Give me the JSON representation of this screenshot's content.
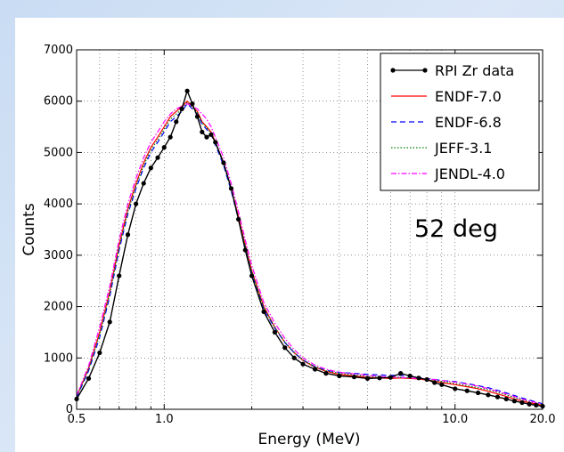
{
  "chart_data": {
    "type": "line",
    "xlabel": "Energy (MeV)",
    "ylabel": "Counts",
    "xscale": "log",
    "xlim": [
      0.5,
      20.0
    ],
    "ylim": [
      0,
      7000
    ],
    "xticks": [
      0.5,
      1.0,
      10.0,
      20.0
    ],
    "xtick_labels": [
      "0.5",
      "1.0",
      "10.0",
      "20.0"
    ],
    "yticks": [
      0,
      1000,
      2000,
      3000,
      4000,
      5000,
      6000,
      7000
    ],
    "ytick_labels": [
      "0",
      "1000",
      "2000",
      "3000",
      "4000",
      "5000",
      "6000",
      "7000"
    ],
    "grid": true,
    "legend_position": "top-right",
    "annotation": "52 deg",
    "series": [
      {
        "name": "RPI Zr data",
        "color": "#000000",
        "style": "solid-markers",
        "x": [
          0.5,
          0.55,
          0.6,
          0.65,
          0.7,
          0.75,
          0.8,
          0.85,
          0.9,
          0.95,
          1.0,
          1.05,
          1.1,
          1.15,
          1.2,
          1.25,
          1.3,
          1.35,
          1.4,
          1.45,
          1.5,
          1.6,
          1.7,
          1.8,
          1.9,
          2.0,
          2.2,
          2.4,
          2.6,
          2.8,
          3.0,
          3.3,
          3.6,
          4.0,
          4.5,
          5.0,
          5.5,
          6.0,
          6.5,
          7.0,
          7.5,
          8.0,
          8.5,
          9.0,
          10.0,
          11.0,
          12.0,
          13.0,
          14.0,
          15.0,
          16.0,
          17.0,
          18.0,
          19.0,
          20.0
        ],
        "y": [
          200,
          600,
          1100,
          1700,
          2600,
          3400,
          4000,
          4400,
          4700,
          4900,
          5100,
          5300,
          5600,
          5850,
          6200,
          5950,
          5700,
          5400,
          5300,
          5350,
          5200,
          4800,
          4300,
          3700,
          3100,
          2600,
          1900,
          1500,
          1200,
          1000,
          880,
          780,
          700,
          650,
          630,
          600,
          610,
          620,
          700,
          650,
          610,
          580,
          520,
          480,
          400,
          360,
          320,
          280,
          240,
          200,
          160,
          130,
          100,
          80,
          60
        ]
      },
      {
        "name": "ENDF-7.0",
        "color": "#ff0000",
        "style": "solid",
        "x": [
          0.5,
          0.55,
          0.6,
          0.65,
          0.7,
          0.75,
          0.8,
          0.85,
          0.9,
          0.95,
          1.0,
          1.05,
          1.1,
          1.15,
          1.2,
          1.25,
          1.3,
          1.35,
          1.4,
          1.45,
          1.5,
          1.6,
          1.7,
          1.8,
          1.9,
          2.0,
          2.2,
          2.4,
          2.6,
          2.8,
          3.0,
          3.3,
          3.6,
          4.0,
          4.5,
          5.0,
          5.5,
          6.0,
          6.5,
          7.0,
          7.5,
          8.0,
          8.5,
          9.0,
          10.0,
          11.0,
          12.0,
          13.0,
          14.0,
          15.0,
          16.0,
          17.0,
          18.0,
          19.0,
          20.0
        ],
        "y": [
          250,
          800,
          1500,
          2300,
          3200,
          3900,
          4400,
          4800,
          5100,
          5300,
          5500,
          5700,
          5800,
          5900,
          6000,
          5900,
          5800,
          5600,
          5500,
          5400,
          5200,
          4800,
          4300,
          3750,
          3200,
          2700,
          2000,
          1600,
          1300,
          1100,
          950,
          820,
          740,
          680,
          650,
          620,
          610,
          600,
          610,
          600,
          590,
          570,
          550,
          520,
          480,
          440,
          400,
          350,
          300,
          250,
          200,
          160,
          130,
          100,
          80
        ]
      },
      {
        "name": "ENDF-6.8",
        "color": "#0000ff",
        "style": "dashed",
        "x": [
          0.5,
          0.55,
          0.6,
          0.65,
          0.7,
          0.75,
          0.8,
          0.85,
          0.9,
          0.95,
          1.0,
          1.05,
          1.1,
          1.15,
          1.2,
          1.25,
          1.3,
          1.35,
          1.4,
          1.45,
          1.5,
          1.6,
          1.7,
          1.8,
          1.9,
          2.0,
          2.2,
          2.4,
          2.6,
          2.8,
          3.0,
          3.3,
          3.6,
          4.0,
          4.5,
          5.0,
          5.5,
          6.0,
          6.5,
          7.0,
          7.5,
          8.0,
          8.5,
          9.0,
          10.0,
          11.0,
          12.0,
          13.0,
          14.0,
          15.0,
          16.0,
          17.0,
          18.0,
          19.0,
          20.0
        ],
        "y": [
          230,
          750,
          1400,
          2200,
          3100,
          3800,
          4300,
          4700,
          5000,
          5200,
          5400,
          5600,
          5700,
          5800,
          5950,
          5850,
          5750,
          5550,
          5450,
          5350,
          5150,
          4750,
          4250,
          3700,
          3150,
          2650,
          1950,
          1580,
          1300,
          1100,
          960,
          830,
          760,
          720,
          700,
          680,
          670,
          660,
          660,
          640,
          620,
          600,
          580,
          560,
          540,
          500,
          460,
          420,
          370,
          320,
          270,
          220,
          180,
          140,
          110
        ]
      },
      {
        "name": "JEFF-3.1",
        "color": "#008000",
        "style": "dotted",
        "x": [
          0.5,
          0.55,
          0.6,
          0.65,
          0.7,
          0.75,
          0.8,
          0.85,
          0.9,
          0.95,
          1.0,
          1.05,
          1.1,
          1.15,
          1.2,
          1.25,
          1.3,
          1.35,
          1.4,
          1.45,
          1.5,
          1.6,
          1.7,
          1.8,
          1.9,
          2.0,
          2.2,
          2.4,
          2.6,
          2.8,
          3.0,
          3.3,
          3.6,
          4.0,
          4.5,
          5.0,
          5.5,
          6.0,
          6.5,
          7.0,
          7.5,
          8.0,
          8.5,
          9.0,
          10.0,
          11.0,
          12.0,
          13.0,
          14.0,
          15.0,
          16.0,
          17.0,
          18.0,
          19.0,
          20.0
        ],
        "y": [
          240,
          780,
          1450,
          2250,
          3150,
          3850,
          4350,
          4750,
          5050,
          5250,
          5450,
          5650,
          5750,
          5850,
          5980,
          5880,
          5780,
          5580,
          5480,
          5380,
          5180,
          4780,
          4280,
          3720,
          3170,
          2670,
          1980,
          1600,
          1310,
          1110,
          960,
          830,
          750,
          700,
          670,
          640,
          630,
          620,
          620,
          610,
          600,
          580,
          560,
          540,
          500,
          460,
          420,
          380,
          330,
          280,
          230,
          190,
          150,
          120,
          90
        ]
      },
      {
        "name": "JENDL-4.0",
        "color": "#ff00ff",
        "style": "dashdot",
        "x": [
          0.5,
          0.55,
          0.6,
          0.65,
          0.7,
          0.75,
          0.8,
          0.85,
          0.9,
          0.95,
          1.0,
          1.05,
          1.1,
          1.15,
          1.2,
          1.25,
          1.3,
          1.35,
          1.4,
          1.45,
          1.5,
          1.6,
          1.7,
          1.8,
          1.9,
          2.0,
          2.2,
          2.4,
          2.6,
          2.8,
          3.0,
          3.3,
          3.6,
          4.0,
          4.5,
          5.0,
          5.5,
          6.0,
          6.5,
          7.0,
          7.5,
          8.0,
          8.5,
          9.0,
          10.0,
          11.0,
          12.0,
          13.0,
          14.0,
          15.0,
          16.0,
          17.0,
          18.0,
          19.0,
          20.0
        ],
        "y": [
          270,
          850,
          1600,
          2400,
          3300,
          4000,
          4500,
          4900,
          5200,
          5400,
          5600,
          5750,
          5850,
          5900,
          5950,
          5900,
          5850,
          5750,
          5650,
          5500,
          5300,
          4900,
          4400,
          3850,
          3300,
          2800,
          2080,
          1680,
          1380,
          1160,
          1000,
          860,
          780,
          720,
          690,
          660,
          640,
          630,
          620,
          610,
          600,
          590,
          580,
          560,
          530,
          490,
          450,
          400,
          350,
          300,
          250,
          200,
          160,
          130,
          100
        ]
      }
    ]
  }
}
